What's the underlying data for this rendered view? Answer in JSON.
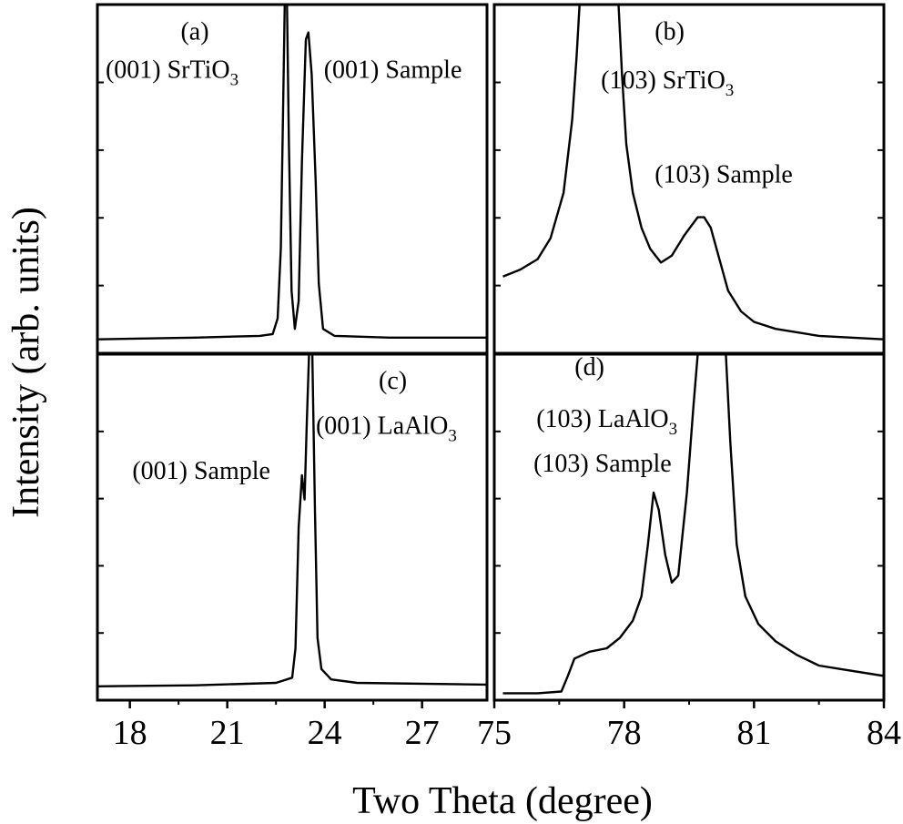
{
  "figure": {
    "ylabel": "Intensity (arb. units)",
    "xlabel": "Two Theta (degree)"
  },
  "chart_data": [
    {
      "type": "line",
      "panel": "(a)",
      "xlabel": "Two Theta (degree)",
      "ylabel": "Intensity (arb. units)",
      "xlim": [
        17,
        29
      ],
      "ylim": [
        0,
        1
      ],
      "xticks": [
        18,
        21,
        24,
        27
      ],
      "annotations": [
        {
          "text": "(a)",
          "x": 20.0,
          "y": 0.9
        },
        {
          "text": "(001) SrTiO",
          "sub": "3",
          "x": 19.3,
          "y": 0.79
        },
        {
          "text": "(001) Sample",
          "x": 26.1,
          "y": 0.79
        }
      ],
      "series": [
        {
          "points": [
            [
              17.0,
              0.04
            ],
            [
              20.0,
              0.045
            ],
            [
              22.0,
              0.05
            ],
            [
              22.4,
              0.055
            ],
            [
              22.55,
              0.1
            ],
            [
              22.65,
              0.3
            ],
            [
              22.72,
              0.7
            ],
            [
              22.77,
              1.0
            ],
            [
              22.84,
              1.0
            ],
            [
              22.9,
              0.6
            ],
            [
              22.98,
              0.18
            ],
            [
              23.08,
              0.07
            ],
            [
              23.2,
              0.15
            ],
            [
              23.3,
              0.55
            ],
            [
              23.42,
              0.9
            ],
            [
              23.5,
              0.92
            ],
            [
              23.6,
              0.8
            ],
            [
              23.72,
              0.5
            ],
            [
              23.82,
              0.2
            ],
            [
              23.95,
              0.07
            ],
            [
              24.3,
              0.05
            ],
            [
              26.0,
              0.045
            ],
            [
              29.0,
              0.045
            ]
          ]
        }
      ]
    },
    {
      "type": "line",
      "panel": "(b)",
      "xlabel": "Two Theta (degree)",
      "ylabel": "Intensity (arb. units)",
      "xlim": [
        75,
        84
      ],
      "ylim": [
        0,
        1
      ],
      "xticks": [
        75,
        78,
        81,
        84
      ],
      "annotations": [
        {
          "text": "(b)",
          "x": 79.05,
          "y": 0.9
        },
        {
          "text": "(103) SrTiO",
          "sub": "3",
          "x": 79.0,
          "y": 0.76
        },
        {
          "text": "(103) Sample",
          "x": 80.3,
          "y": 0.49
        }
      ],
      "series": [
        {
          "points": [
            [
              75.2,
              0.22
            ],
            [
              75.6,
              0.24
            ],
            [
              76.0,
              0.27
            ],
            [
              76.3,
              0.33
            ],
            [
              76.6,
              0.46
            ],
            [
              76.8,
              0.67
            ],
            [
              76.9,
              0.85
            ],
            [
              76.97,
              1.0
            ],
            [
              77.87,
              1.0
            ],
            [
              77.95,
              0.8
            ],
            [
              78.05,
              0.6
            ],
            [
              78.2,
              0.46
            ],
            [
              78.4,
              0.36
            ],
            [
              78.6,
              0.3
            ],
            [
              78.85,
              0.26
            ],
            [
              79.1,
              0.28
            ],
            [
              79.4,
              0.34
            ],
            [
              79.7,
              0.39
            ],
            [
              79.85,
              0.39
            ],
            [
              80.0,
              0.36
            ],
            [
              80.2,
              0.27
            ],
            [
              80.4,
              0.18
            ],
            [
              80.7,
              0.12
            ],
            [
              81.0,
              0.09
            ],
            [
              81.5,
              0.07
            ],
            [
              82.5,
              0.05
            ],
            [
              84.0,
              0.04
            ]
          ]
        }
      ]
    },
    {
      "type": "line",
      "panel": "(c)",
      "xlabel": "Two Theta (degree)",
      "ylabel": "Intensity (arb. units)",
      "xlim": [
        17,
        29
      ],
      "ylim": [
        0,
        1
      ],
      "xticks": [
        18,
        21,
        24,
        27
      ],
      "annotations": [
        {
          "text": "(c)",
          "x": 26.1,
          "y": 0.9
        },
        {
          "text": "(001) LaAlO",
          "sub": "3",
          "x": 25.9,
          "y": 0.77
        },
        {
          "text": "(001) Sample",
          "x": 20.2,
          "y": 0.64
        }
      ],
      "series": [
        {
          "points": [
            [
              17.0,
              0.04
            ],
            [
              20.0,
              0.043
            ],
            [
              22.5,
              0.05
            ],
            [
              23.0,
              0.065
            ],
            [
              23.1,
              0.15
            ],
            [
              23.2,
              0.5
            ],
            [
              23.3,
              0.65
            ],
            [
              23.38,
              0.58
            ],
            [
              23.45,
              0.8
            ],
            [
              23.52,
              1.0
            ],
            [
              23.62,
              1.0
            ],
            [
              23.7,
              0.55
            ],
            [
              23.78,
              0.18
            ],
            [
              23.9,
              0.09
            ],
            [
              24.2,
              0.06
            ],
            [
              25.0,
              0.05
            ],
            [
              29.0,
              0.045
            ]
          ]
        }
      ]
    },
    {
      "type": "line",
      "panel": "(d)",
      "xlabel": "Two Theta (degree)",
      "ylabel": "Intensity (arb. units)",
      "xlim": [
        75,
        84
      ],
      "ylim": [
        0,
        1
      ],
      "xticks": [
        75,
        78,
        81,
        84
      ],
      "annotations": [
        {
          "text": "(d)",
          "x": 77.2,
          "y": 0.94
        },
        {
          "text": "(103) LaAlO",
          "sub": "3",
          "x": 77.6,
          "y": 0.79
        },
        {
          "text": "(103) Sample",
          "x": 77.5,
          "y": 0.66
        }
      ],
      "series": [
        {
          "points": [
            [
              75.2,
              0.02
            ],
            [
              76.0,
              0.02
            ],
            [
              76.55,
              0.025
            ],
            [
              76.7,
              0.07
            ],
            [
              76.85,
              0.12
            ],
            [
              77.2,
              0.14
            ],
            [
              77.6,
              0.15
            ],
            [
              77.9,
              0.18
            ],
            [
              78.2,
              0.23
            ],
            [
              78.4,
              0.3
            ],
            [
              78.55,
              0.45
            ],
            [
              78.68,
              0.6
            ],
            [
              78.8,
              0.55
            ],
            [
              78.95,
              0.42
            ],
            [
              79.1,
              0.34
            ],
            [
              79.25,
              0.36
            ],
            [
              79.45,
              0.6
            ],
            [
              79.6,
              0.85
            ],
            [
              79.7,
              1.0
            ],
            [
              80.35,
              1.0
            ],
            [
              80.45,
              0.75
            ],
            [
              80.6,
              0.45
            ],
            [
              80.8,
              0.3
            ],
            [
              81.1,
              0.22
            ],
            [
              81.5,
              0.17
            ],
            [
              82.0,
              0.13
            ],
            [
              82.5,
              0.1
            ],
            [
              83.0,
              0.09
            ],
            [
              84.0,
              0.07
            ]
          ]
        }
      ]
    }
  ]
}
